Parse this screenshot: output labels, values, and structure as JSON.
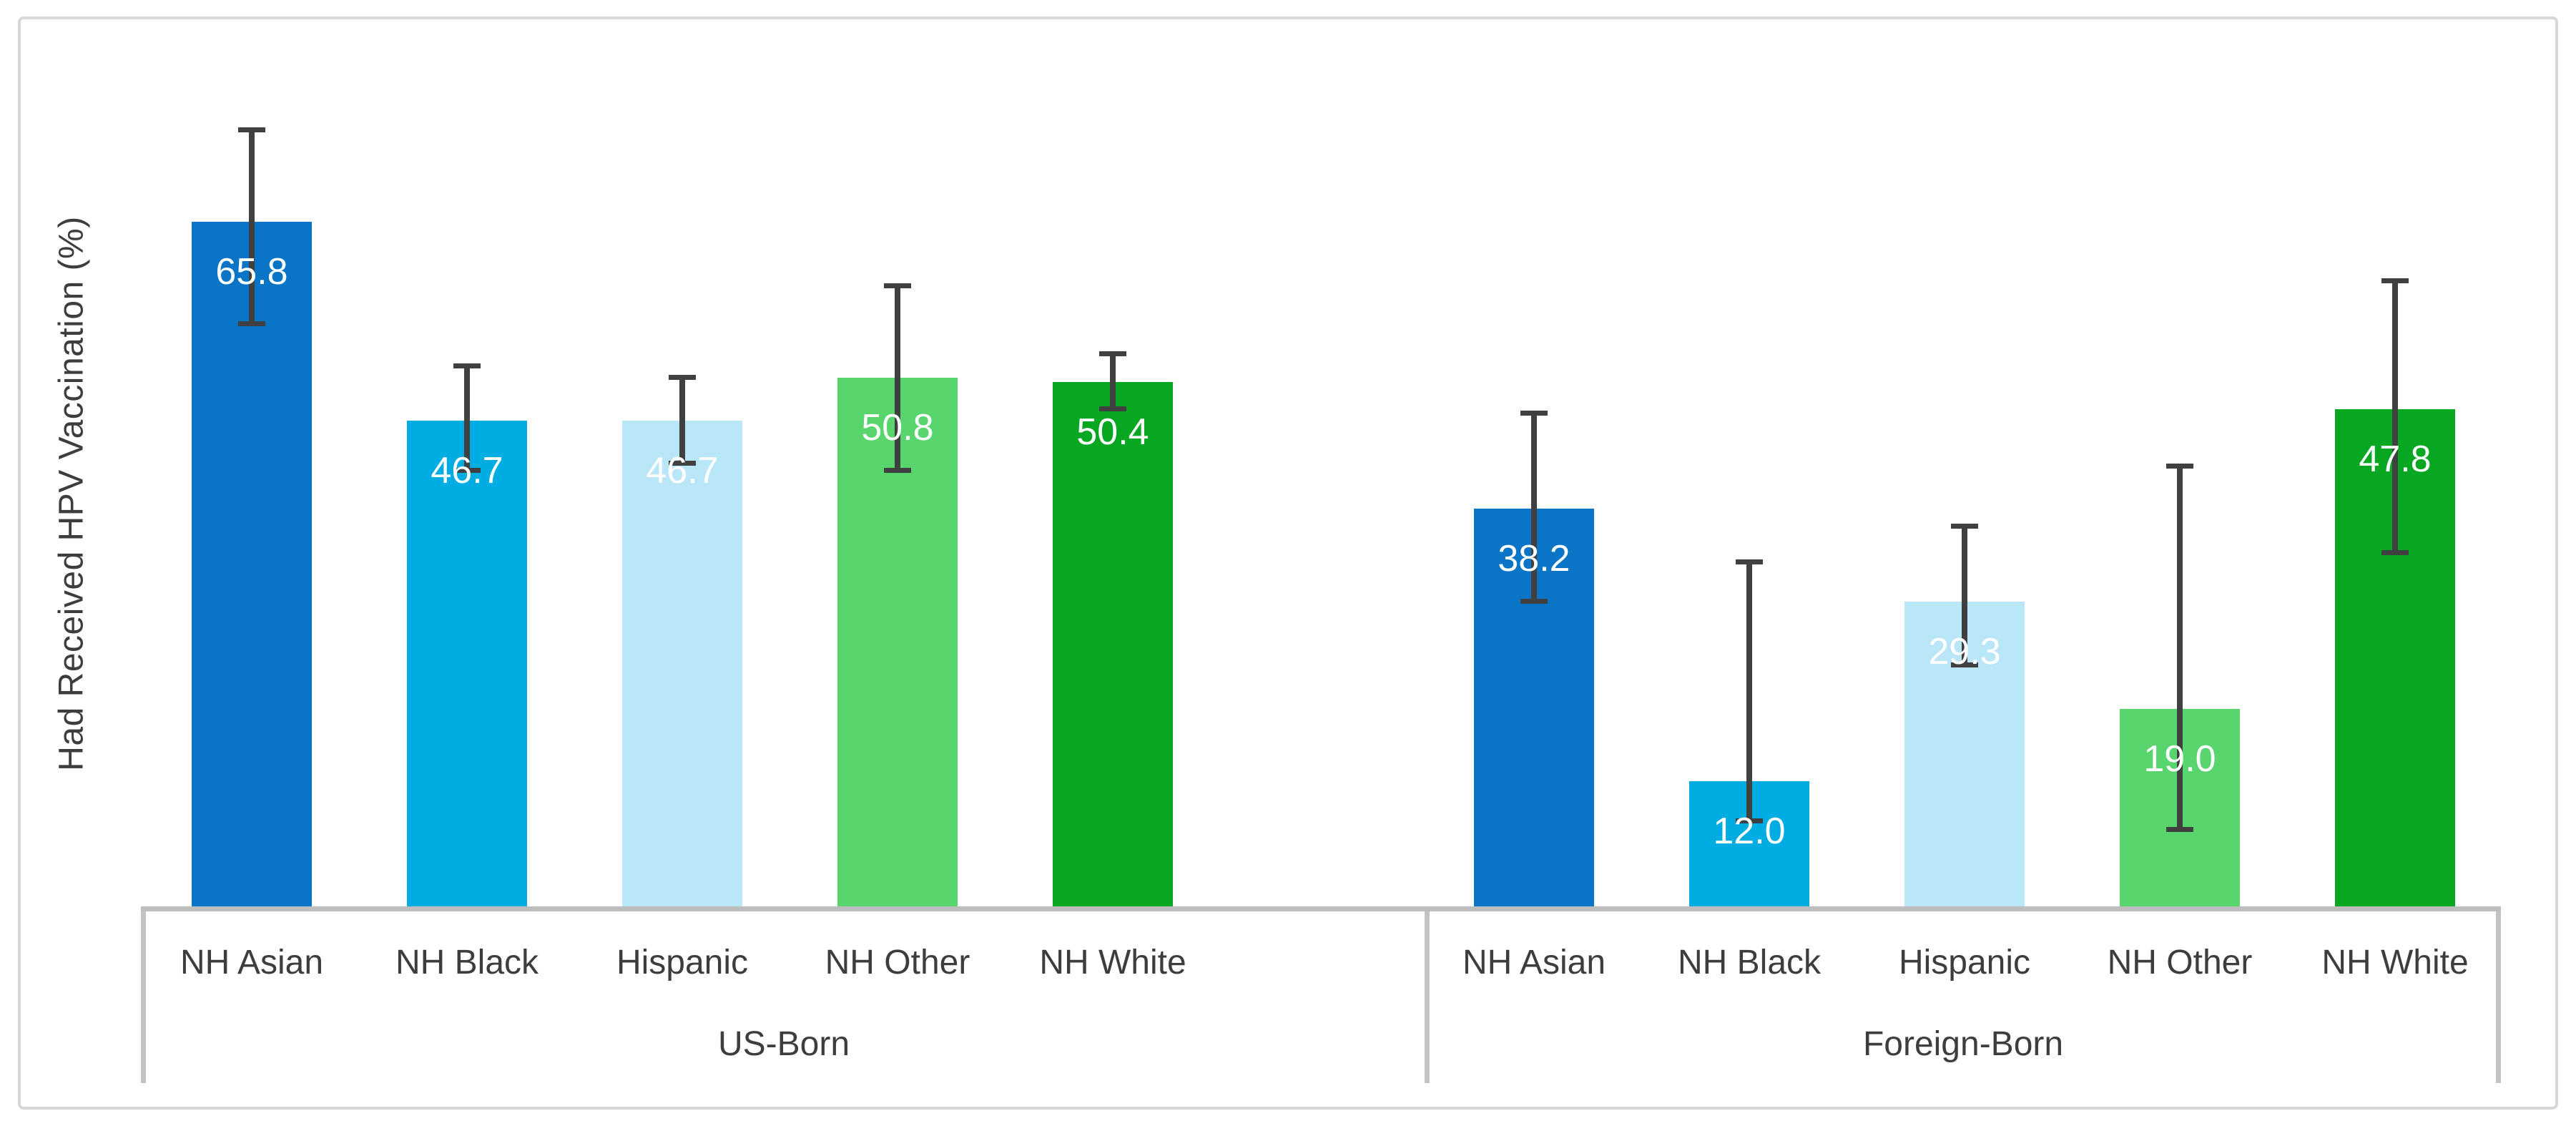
{
  "chart_data": {
    "type": "bar",
    "title": "",
    "ylabel": "Had Received HPV Vaccination (%)",
    "ylim": [
      0,
      80
    ],
    "grid": false,
    "legend": "none",
    "value_label_format": "0.1f",
    "value_label_color": "#ffffff",
    "error_bar_color": "#404040",
    "axis_line_color": "#bdbdbd",
    "frame_color": "#d7d7d7",
    "text_color": "#3d3d3d",
    "groups": [
      {
        "label": "US-Born",
        "categories": [
          "NH Asian",
          "NH Black",
          "Hispanic",
          "NH Other",
          "NH White"
        ],
        "values": [
          65.8,
          46.7,
          46.7,
          50.8,
          50.4
        ],
        "ci_low": [
          56.0,
          41.9,
          42.6,
          41.9,
          47.8
        ],
        "ci_high": [
          74.6,
          51.9,
          50.8,
          59.6,
          53.1
        ]
      },
      {
        "label": "Foreign-Born",
        "categories": [
          "NH Asian",
          "NH Black",
          "Hispanic",
          "NH Other",
          "NH White"
        ],
        "values": [
          38.2,
          12.0,
          29.3,
          19.0,
          47.8
        ],
        "ci_low": [
          29.3,
          8.2,
          23.2,
          7.4,
          34.0
        ],
        "ci_high": [
          47.4,
          33.1,
          36.5,
          42.3,
          60.1
        ]
      }
    ],
    "category_colors": {
      "NH Asian": "#0a74c6",
      "NH Black": "#00ade2",
      "Hispanic": "#b9e7f8",
      "NH Other": "#58d56c",
      "NH White": "#08a722"
    }
  }
}
